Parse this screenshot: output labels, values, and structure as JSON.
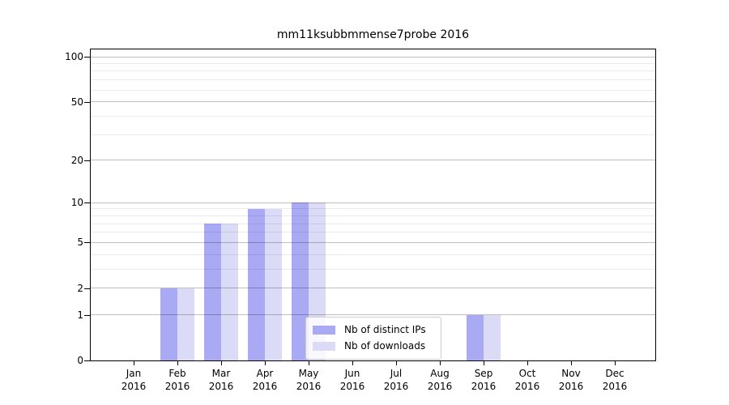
{
  "figure": {
    "title": "mm11ksubbmmense7probe 2016",
    "background_color": "#ffffff"
  },
  "legend": {
    "items": [
      {
        "label": "Nb of distinct IPs",
        "color": "#a9a9f4"
      },
      {
        "label": "Nb of downloads",
        "color": "#dbdbf8"
      }
    ]
  },
  "chart_data": {
    "type": "bar",
    "title": "mm11ksubbmmense7probe 2016",
    "categories": [
      "Jan 2016",
      "Feb 2016",
      "Mar 2016",
      "Apr 2016",
      "May 2016",
      "Jun 2016",
      "Jul 2016",
      "Aug 2016",
      "Sep 2016",
      "Oct 2016",
      "Nov 2016",
      "Dec 2016"
    ],
    "x_tick_months": [
      "Jan",
      "Feb",
      "Mar",
      "Apr",
      "May",
      "Jun",
      "Jul",
      "Aug",
      "Sep",
      "Oct",
      "Nov",
      "Dec"
    ],
    "x_tick_year": "2016",
    "series": [
      {
        "name": "Nb of distinct IPs",
        "color": "#a9a9f4",
        "values": [
          0,
          2,
          7,
          9,
          10,
          0,
          0,
          0,
          1,
          0,
          0,
          0
        ]
      },
      {
        "name": "Nb of downloads",
        "color": "#dbdbf8",
        "values": [
          0,
          2,
          7,
          9,
          10,
          0,
          0,
          0,
          1,
          0,
          0,
          0
        ]
      }
    ],
    "xlabel": "",
    "ylabel": "",
    "y_axis": {
      "scale": "log1p",
      "major_ticks": [
        0,
        1,
        2,
        5,
        10,
        20,
        50,
        100
      ],
      "minor_gridlines": [
        3,
        4,
        6,
        7,
        8,
        9,
        30,
        40,
        60,
        70,
        80,
        90
      ],
      "ylim": [
        0,
        112
      ]
    },
    "grid": "horizontal major+minor gridlines drawn above bars",
    "legend_position": "inside, lower center"
  }
}
